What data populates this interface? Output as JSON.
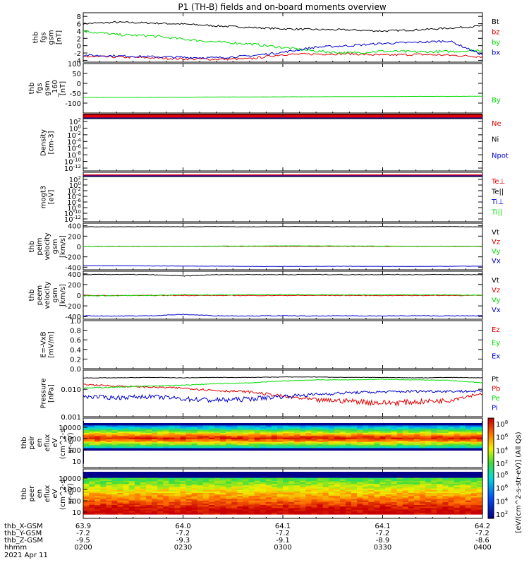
{
  "title": "P1 (TH-B) fields and on-board moments overview",
  "colors": {
    "black": "#000000",
    "red": "#e00000",
    "green": "#00dd00",
    "blue": "#0000cc"
  },
  "chart_data": [
    {
      "type": "line",
      "panel": "fgs_gsm",
      "ylabel": "thb fgs gsm [nT]",
      "ylim": [
        -4.5,
        9
      ],
      "yticks": [
        "-4",
        "-2",
        "0",
        "2",
        "4",
        "6",
        "8"
      ],
      "series": [
        {
          "name": "Bt",
          "color": "#000000",
          "values": [
            6.0,
            6.4,
            6.2,
            5.9,
            5.4,
            5.0,
            4.6,
            4.4,
            4.3,
            4.0,
            4.3,
            4.8,
            5.4
          ]
        },
        {
          "name": "bz",
          "color": "#e00000",
          "values": [
            -3.0,
            -3.1,
            -3.3,
            -3.6,
            -3.7,
            -3.6,
            -2.4,
            -2.3,
            -2.2,
            -2.6,
            -2.4,
            -2.6,
            -3.0
          ]
        },
        {
          "name": "by",
          "color": "#00dd00",
          "values": [
            4.0,
            3.0,
            2.7,
            1.8,
            1.0,
            0.5,
            -0.5,
            -1.5,
            -2.0,
            -1.5,
            -1.7,
            -1.6,
            -1.2
          ]
        },
        {
          "name": "bx",
          "color": "#0000cc",
          "values": [
            -2.6,
            -2.8,
            -3.0,
            -3.2,
            -3.3,
            -2.8,
            -1.8,
            -0.4,
            0.0,
            0.6,
            0.9,
            1.3,
            -2.5
          ]
        }
      ]
    },
    {
      "type": "line",
      "panel": "fgs_gsm_160",
      "ylabel": "thb fgs gsm_160 [nT]",
      "ylim": [
        -150,
        100
      ],
      "yticks": [
        "-100",
        "-50",
        "0",
        "50",
        "100"
      ],
      "series": [
        {
          "name": "By",
          "color": "#00dd00",
          "values": [
            -71,
            -71,
            -70,
            -70,
            -69,
            -69,
            -68,
            -68,
            -67,
            -67,
            -66,
            -66,
            -65
          ]
        }
      ]
    },
    {
      "type": "line",
      "panel": "density",
      "ylabel": "Density [cm-3]",
      "yscale": "log",
      "yticks": [
        "10^2",
        "10^0",
        "10^-2",
        "10^-4",
        "10^-6",
        "10^-8",
        "10^-10",
        "10^-12"
      ],
      "legend": [
        "Ne",
        "Ni",
        "Npot"
      ],
      "legend_colors": [
        "#e00000",
        "#000000",
        "#0000cc"
      ]
    },
    {
      "type": "line",
      "panel": "temperature",
      "ylabel": "mogt3 [eV]",
      "yscale": "log",
      "yticks": [
        "10^2",
        "10^0",
        "10^-2",
        "10^-4",
        "10^-6",
        "10^-8",
        "10^-10",
        "10^-12"
      ],
      "legend": [
        "Te⊥",
        "Te||",
        "Ti⊥",
        "Ti||"
      ],
      "legend_colors": [
        "#e00000",
        "#000000",
        "#0000cc",
        "#00dd00"
      ]
    },
    {
      "type": "line",
      "panel": "peim_velocity",
      "ylabel": "thb peim velocity gsm [km/s]",
      "ylim": [
        -450,
        450
      ],
      "yticks": [
        "-400",
        "-200",
        "0",
        "200",
        "400"
      ],
      "series": [
        {
          "name": "Vt",
          "color": "#000000",
          "values": [
            380,
            380,
            385,
            380,
            385,
            380,
            385,
            385,
            380,
            385,
            380,
            385,
            380
          ]
        },
        {
          "name": "Vz",
          "color": "#e00000",
          "values": [
            2,
            3,
            2,
            4,
            3,
            2,
            3,
            2,
            3,
            2,
            3,
            2,
            3
          ]
        },
        {
          "name": "Vy",
          "color": "#00dd00",
          "values": [
            0,
            1,
            2,
            5,
            8,
            8,
            12,
            12,
            10,
            8,
            5,
            5,
            5
          ]
        },
        {
          "name": "Vx",
          "color": "#0000cc",
          "values": [
            -370,
            -372,
            -375,
            -378,
            -380,
            -385,
            -386,
            -383,
            -382,
            -385,
            -386,
            -383,
            -380
          ]
        }
      ],
      "legend": [
        "Vt",
        "Vz",
        "Vy",
        "Vx"
      ]
    },
    {
      "type": "line",
      "panel": "peem_velocity",
      "ylabel": "thb peem velocity gsm [km/s]",
      "ylim": [
        -450,
        450
      ],
      "yticks": [
        "-400",
        "-200",
        "0",
        "200",
        "400"
      ],
      "series": [
        {
          "name": "Vt",
          "color": "#000000",
          "values": [
            385,
            390,
            385,
            360,
            385,
            388,
            385,
            388,
            385,
            388,
            385,
            388,
            385
          ]
        },
        {
          "name": "Vz",
          "color": "#e00000",
          "values": [
            -5,
            -6,
            -5,
            -4,
            -5,
            -6,
            -5,
            -4,
            -5,
            -6,
            -5,
            -4,
            -5
          ]
        },
        {
          "name": "Vy",
          "color": "#00dd00",
          "values": [
            -10,
            -8,
            -5,
            10,
            5,
            10,
            12,
            8,
            6,
            10,
            8,
            5,
            0
          ]
        },
        {
          "name": "Vx",
          "color": "#0000cc",
          "values": [
            -385,
            -390,
            -385,
            -360,
            -385,
            -388,
            -385,
            -390,
            -385,
            -388,
            -385,
            -388,
            -385
          ]
        }
      ],
      "legend": [
        "Vt",
        "Vz",
        "Vy",
        "Vx"
      ]
    },
    {
      "type": "line",
      "panel": "efield",
      "ylabel": "E=-VxB [mV/m]",
      "ylim": [
        0,
        1
      ],
      "yticks": [
        "0.0",
        "0.2",
        "0.4",
        "0.6",
        "0.8",
        "1.0"
      ],
      "legend": [
        "Ez",
        "Ey",
        "Ex"
      ],
      "legend_colors": [
        "#e00000",
        "#00dd00",
        "#0000cc"
      ]
    },
    {
      "type": "line",
      "panel": "pressure",
      "ylabel": "Pressure [nPa]",
      "yscale": "log",
      "ylim": [
        0.001,
        0.05
      ],
      "yticks": [
        "0.010",
        "0.001"
      ],
      "series": [
        {
          "name": "Pt",
          "color": "#000000",
          "values": [
            0.026,
            0.026,
            0.027,
            0.026,
            0.027,
            0.027,
            0.028,
            0.028,
            0.027,
            0.027,
            0.026,
            0.027,
            0.026
          ]
        },
        {
          "name": "Pb",
          "color": "#e00000",
          "values": [
            0.015,
            0.013,
            0.012,
            0.011,
            0.009,
            0.008,
            0.0055,
            0.004,
            0.0038,
            0.0032,
            0.0035,
            0.004,
            0.007
          ]
        },
        {
          "name": "Pe",
          "color": "#00dd00",
          "values": [
            0.011,
            0.012,
            0.013,
            0.014,
            0.016,
            0.017,
            0.02,
            0.022,
            0.022,
            0.023,
            0.022,
            0.021,
            0.017
          ]
        },
        {
          "name": "Pi",
          "color": "#0000cc",
          "values": [
            0.0055,
            0.005,
            0.0055,
            0.0045,
            0.004,
            0.0045,
            0.0055,
            0.0065,
            0.0075,
            0.008,
            0.0085,
            0.0085,
            0.0085
          ]
        }
      ]
    },
    {
      "type": "heatmap",
      "panel": "peir_spectrogram",
      "ylabel": "thb peir en eflux eV (cm^2-s-sr-eV)",
      "yscale": "log",
      "yticks": [
        "10000",
        "1000",
        "100",
        "10"
      ]
    },
    {
      "type": "heatmap",
      "panel": "peer_spectrogram",
      "ylabel": "thb peer en eflux eV (cm^2-s-sr-eV)",
      "yscale": "log",
      "yticks": [
        "10000",
        "1000",
        "100",
        "10"
      ]
    }
  ],
  "colorbar": {
    "label": "[eV/(cm^2-s-str-eV)] (All Qs)",
    "ticks": [
      "10^8",
      "10^6",
      "10^4",
      "10^2"
    ]
  },
  "xaxis": {
    "rows": [
      {
        "label": "thb_X-GSM",
        "values": [
          "63.9",
          "64.0",
          "64.1",
          "64.1",
          "64.2"
        ]
      },
      {
        "label": "thb_Y-GSM",
        "values": [
          "-7.2",
          "-7.2",
          "-7.2",
          "-7.2",
          "-7.2"
        ]
      },
      {
        "label": "thb_Z-GSM",
        "values": [
          "-9.5",
          "-9.3",
          "-9.1",
          "-8.9",
          "-8.6"
        ]
      },
      {
        "label": "hhmm",
        "values": [
          "0200",
          "0230",
          "0300",
          "0330",
          "0400"
        ]
      }
    ],
    "date": "2021 Apr 11"
  }
}
